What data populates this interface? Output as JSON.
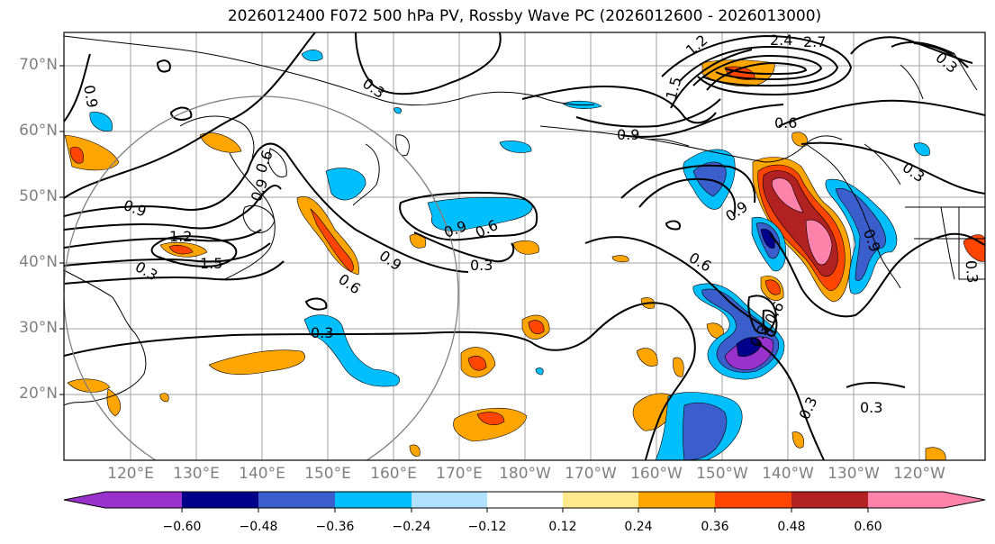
{
  "title": "2026012400 F072 500 hPa PV, Rossby Wave PC (2026012600 - 2026013000)",
  "lat_labels": [
    "70°N",
    "60°N",
    "50°N",
    "40°N",
    "30°N",
    "20°N"
  ],
  "lon_labels": [
    "120°E",
    "130°E",
    "140°E",
    "150°E",
    "160°E",
    "170°E",
    "180°W",
    "170°W",
    "160°W",
    "150°W",
    "140°W",
    "130°W",
    "120°W"
  ],
  "colorbar": {
    "ticks": [
      "−0.60",
      "−0.48",
      "−0.36",
      "−0.24",
      "−0.12",
      "0.12",
      "0.24",
      "0.36",
      "0.48",
      "0.60"
    ],
    "colors": [
      "#9932cc",
      "#00008b",
      "#3a5fcd",
      "#00bfff",
      "#b0e2ff",
      "#ffffff",
      "#ffe98a",
      "#ffa500",
      "#ff4500",
      "#b22222",
      "#ff82ab"
    ]
  },
  "contour_labels": [
    "0.9",
    "0.3",
    "1.2",
    "1.5",
    "0.6",
    "0.9",
    "0.9",
    "0.9",
    "0.6",
    "0.3",
    "0.9",
    "0.6",
    "0.3",
    "1.2",
    "1.5",
    "2.4",
    "2.7",
    "0.3",
    "0.6",
    "0.9",
    "0.9",
    "0.6",
    "0.3",
    "0.3",
    "0.3",
    "0.3",
    "0.9",
    "0.3",
    "0.3",
    "0.6"
  ]
}
